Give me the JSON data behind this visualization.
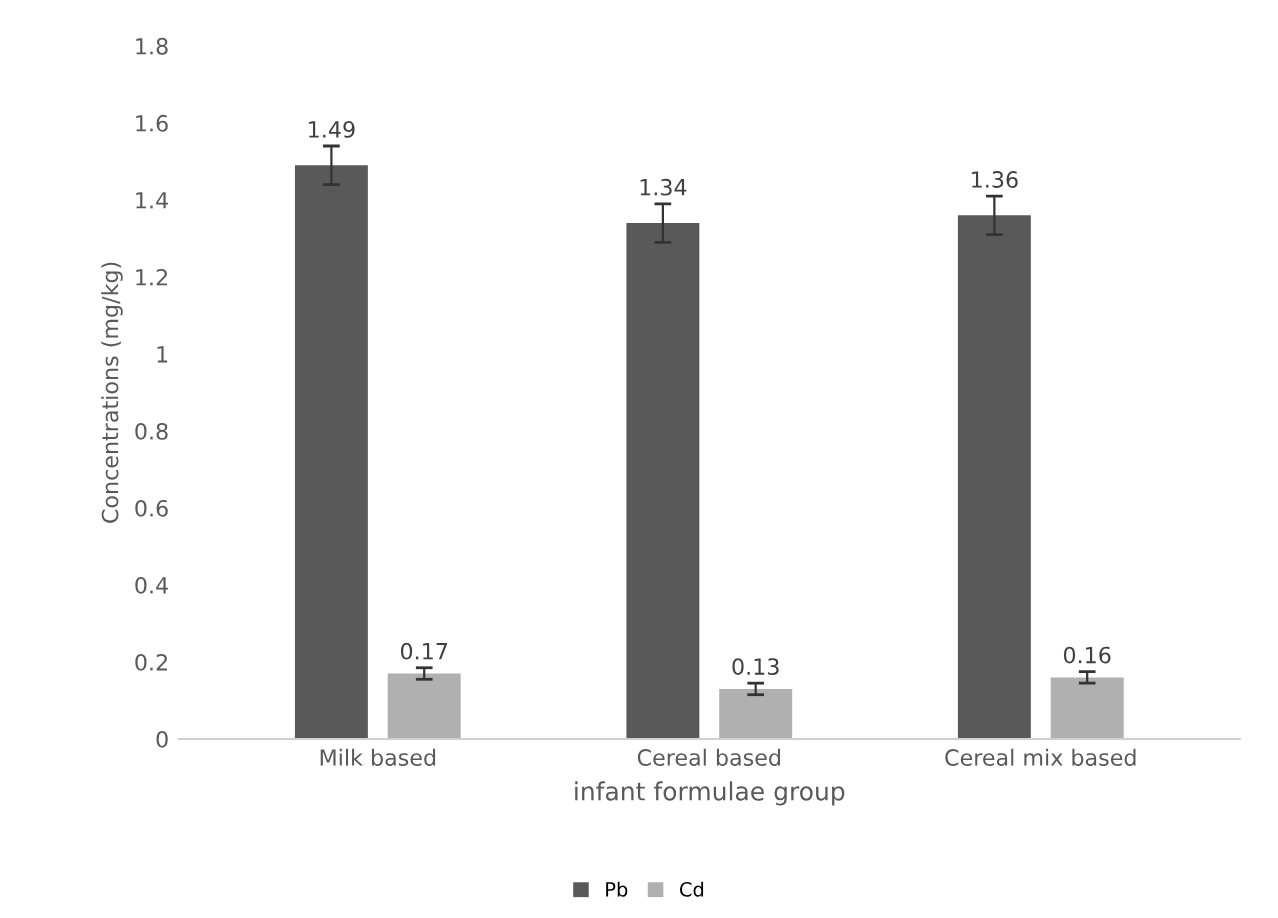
{
  "chart_data": {
    "type": "bar",
    "xlabel": "infant formulae group",
    "ylabel": "Concentrations (mg/kg)",
    "categories": [
      "Milk based",
      "Cereal based",
      "Cereal mix based"
    ],
    "series": [
      {
        "name": "Pb",
        "color": "#595959",
        "values": [
          1.49,
          1.34,
          1.36
        ],
        "errors": [
          0.05,
          0.05,
          0.05
        ]
      },
      {
        "name": "Cd",
        "color": "#b0b0b0",
        "values": [
          0.17,
          0.13,
          0.16
        ],
        "errors": [
          0.015,
          0.015,
          0.015
        ]
      }
    ],
    "ylim": [
      0,
      1.8
    ],
    "yticks": [
      0,
      0.2,
      0.4,
      0.6,
      0.8,
      1,
      1.2,
      1.4,
      1.6,
      1.8
    ],
    "data_labels": true,
    "grid": false,
    "legend": "bottom"
  }
}
